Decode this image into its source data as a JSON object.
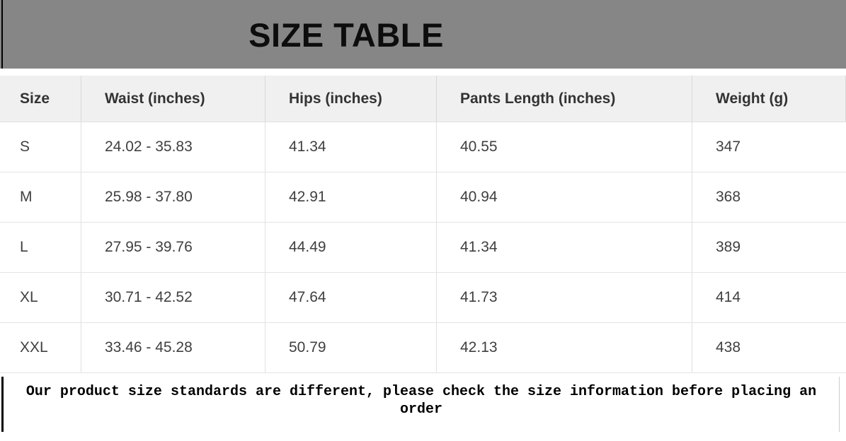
{
  "chart_data": {
    "type": "table",
    "title": "SIZE TABLE",
    "columns": [
      "Size",
      "Waist (inches)",
      "Hips (inches)",
      "Pants Length (inches)",
      "Weight (g)"
    ],
    "rows": [
      [
        "S",
        "24.02 - 35.83",
        "41.34",
        "40.55",
        "347"
      ],
      [
        "M",
        "25.98 - 37.80",
        "42.91",
        "40.94",
        "368"
      ],
      [
        "L",
        "27.95 - 39.76",
        "44.49",
        "41.34",
        "389"
      ],
      [
        "XL",
        "30.71 - 42.52",
        "47.64",
        "41.73",
        "414"
      ],
      [
        "XXL",
        "33.46 - 45.28",
        "50.79",
        "42.13",
        "438"
      ]
    ]
  },
  "note": {
    "text": "Our product size standards are different, please check the size information before placing an order"
  },
  "colors": {
    "title_bar_bg": "#868686",
    "title_text": "#0d0d0d",
    "header_row_bg": "#f0f0f0",
    "header_text": "#333333",
    "cell_text": "#404040",
    "row_divider": "#e4e4e4",
    "column_divider": "#e0e0e0",
    "note_border": "#000000"
  }
}
